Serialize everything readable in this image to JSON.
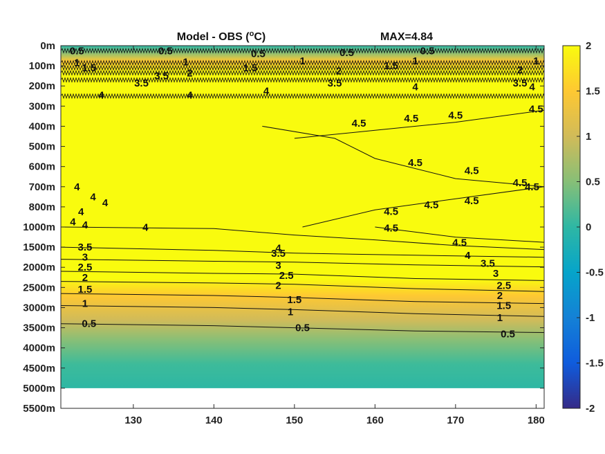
{
  "chart_data": {
    "type": "heatmap",
    "title": "Model - OBS (°C)",
    "title_parts": {
      "main": "Model - OBS (",
      "sup": "o",
      "unit": "C)"
    },
    "max_text": "MAX=4.84",
    "xlabel": "",
    "ylabel": "",
    "xlim": [
      121,
      181
    ],
    "x_ticks": [
      130,
      140,
      150,
      160,
      170,
      180
    ],
    "y_tick_labels": [
      "0m",
      "100m",
      "200m",
      "300m",
      "400m",
      "500m",
      "600m",
      "700m",
      "800m",
      "1000m",
      "1500m",
      "2000m",
      "2500m",
      "3000m",
      "3500m",
      "4000m",
      "4500m",
      "5000m",
      "5500m"
    ],
    "y_tick_values": [
      0,
      100,
      200,
      300,
      400,
      500,
      600,
      700,
      800,
      1000,
      1500,
      2000,
      2500,
      3000,
      3500,
      4000,
      4500,
      5000,
      5500
    ],
    "colorbar": {
      "clim": [
        -2,
        2
      ],
      "ticks": [
        2,
        1.5,
        1,
        0.5,
        0,
        -0.5,
        -1,
        -1.5,
        -2
      ],
      "tick_labels": [
        "2",
        "1.5",
        "1",
        "0.5",
        "0",
        "-0.5",
        "-1",
        "-1.5",
        "-2"
      ],
      "colormap": "parula"
    },
    "colormap_colors": [
      "#352a87",
      "#0f5cdd",
      "#1481d6",
      "#06a4ca",
      "#2eb7a4",
      "#87bf77",
      "#d1bb59",
      "#fec832",
      "#f9fb0e"
    ],
    "ocean_bottom_depth": 5000,
    "contour_levels": [
      "0.5",
      "1",
      "1.5",
      "2",
      "2.5",
      "3",
      "3.5",
      "4",
      "4.5"
    ],
    "contours": [
      {
        "level": 4,
        "label": "4",
        "points": [
          [
            121,
            1000
          ],
          [
            140,
            1040
          ],
          [
            150,
            1200
          ],
          [
            160,
            1320
          ],
          [
            170,
            1460
          ],
          [
            181,
            1560
          ]
        ]
      },
      {
        "level": 3.5,
        "label": "3.5",
        "points": [
          [
            121,
            1500
          ],
          [
            140,
            1580
          ],
          [
            150,
            1650
          ],
          [
            165,
            1700
          ],
          [
            181,
            1750
          ]
        ]
      },
      {
        "level": 3,
        "label": "3",
        "points": [
          [
            121,
            1800
          ],
          [
            140,
            1850
          ],
          [
            150,
            1870
          ],
          [
            165,
            1940
          ],
          [
            181,
            1990
          ]
        ]
      },
      {
        "level": 2.5,
        "label": "2.5",
        "points": [
          [
            121,
            2100
          ],
          [
            140,
            2150
          ],
          [
            150,
            2170
          ],
          [
            165,
            2280
          ],
          [
            181,
            2330
          ]
        ]
      },
      {
        "level": 2,
        "label": "2",
        "points": [
          [
            121,
            2350
          ],
          [
            140,
            2390
          ],
          [
            150,
            2420
          ],
          [
            165,
            2530
          ],
          [
            181,
            2600
          ]
        ]
      },
      {
        "level": 1.5,
        "label": "1.5",
        "points": [
          [
            121,
            2650
          ],
          [
            140,
            2700
          ],
          [
            150,
            2750
          ],
          [
            165,
            2850
          ],
          [
            181,
            2900
          ]
        ]
      },
      {
        "level": 1,
        "label": "1",
        "points": [
          [
            121,
            2950
          ],
          [
            140,
            3000
          ],
          [
            150,
            3050
          ],
          [
            165,
            3150
          ],
          [
            181,
            3220
          ]
        ]
      },
      {
        "level": 0.5,
        "label": "0.5",
        "points": [
          [
            121,
            3400
          ],
          [
            140,
            3450
          ],
          [
            150,
            3500
          ],
          [
            165,
            3580
          ],
          [
            181,
            3620
          ]
        ]
      },
      {
        "level": 4.5,
        "label": "4.5",
        "points": [
          [
            146,
            400
          ],
          [
            155,
            460
          ],
          [
            160,
            560
          ],
          [
            170,
            660
          ],
          [
            181,
            700
          ]
        ]
      },
      {
        "level": 4.5,
        "label": "4.5",
        "points": [
          [
            151,
            1000
          ],
          [
            160,
            830
          ],
          [
            170,
            760
          ],
          [
            181,
            700
          ]
        ]
      },
      {
        "level": 4.5,
        "label": "4.5",
        "points": [
          [
            150,
            460
          ],
          [
            160,
            420
          ],
          [
            170,
            380
          ],
          [
            181,
            320
          ]
        ]
      },
      {
        "level": 4.5,
        "label": "4.5",
        "points": [
          [
            160,
            1000
          ],
          [
            170,
            1250
          ],
          [
            181,
            1380
          ]
        ]
      }
    ],
    "surface_contours": [
      {
        "level": 0.5,
        "label": "0.5",
        "depth": 25
      },
      {
        "level": 1,
        "label": "1",
        "depth": 85
      },
      {
        "level": 1.5,
        "label": "1.5",
        "depth": 110
      },
      {
        "level": 2,
        "label": "2",
        "depth": 135
      },
      {
        "level": 3.5,
        "label": "3.5",
        "depth": 170
      },
      {
        "level": 4,
        "label": "4",
        "depth": 250
      }
    ],
    "contour_labels": [
      {
        "text": "0.5",
        "x": 123.0,
        "y": 25
      },
      {
        "text": "0.5",
        "x": 134.0,
        "y": 25
      },
      {
        "text": "0.5",
        "x": 145.5,
        "y": 40
      },
      {
        "text": "0.5",
        "x": 156.5,
        "y": 35
      },
      {
        "text": "0.5",
        "x": 166.5,
        "y": 25
      },
      {
        "text": "1",
        "x": 123.0,
        "y": 85
      },
      {
        "text": "1",
        "x": 136.5,
        "y": 80
      },
      {
        "text": "1",
        "x": 151.0,
        "y": 75
      },
      {
        "text": "1",
        "x": 165.0,
        "y": 75
      },
      {
        "text": "1",
        "x": 180.0,
        "y": 75
      },
      {
        "text": "1.5",
        "x": 124.5,
        "y": 110
      },
      {
        "text": "1.5",
        "x": 144.5,
        "y": 110
      },
      {
        "text": "1.5",
        "x": 162.0,
        "y": 100
      },
      {
        "text": "2",
        "x": 137.0,
        "y": 135
      },
      {
        "text": "2",
        "x": 155.5,
        "y": 125
      },
      {
        "text": "2",
        "x": 178.0,
        "y": 120
      },
      {
        "text": "3.5",
        "x": 131.0,
        "y": 185
      },
      {
        "text": "3.5",
        "x": 133.5,
        "y": 150
      },
      {
        "text": "3.5",
        "x": 155.0,
        "y": 185
      },
      {
        "text": "3.5",
        "x": 178.0,
        "y": 185
      },
      {
        "text": "4",
        "x": 126.0,
        "y": 245
      },
      {
        "text": "4",
        "x": 137.0,
        "y": 245
      },
      {
        "text": "4",
        "x": 146.5,
        "y": 225
      },
      {
        "text": "4",
        "x": 165.0,
        "y": 205
      },
      {
        "text": "4",
        "x": 179.5,
        "y": 205
      },
      {
        "text": "4.5",
        "x": 158.0,
        "y": 385
      },
      {
        "text": "4.5",
        "x": 164.5,
        "y": 360
      },
      {
        "text": "4.5",
        "x": 170.0,
        "y": 345
      },
      {
        "text": "4.5",
        "x": 180.0,
        "y": 315
      },
      {
        "text": "4.5",
        "x": 165.0,
        "y": 580
      },
      {
        "text": "4.5",
        "x": 172.0,
        "y": 620
      },
      {
        "text": "4.5",
        "x": 178.0,
        "y": 680
      },
      {
        "text": "4.5",
        "x": 162.0,
        "y": 845
      },
      {
        "text": "4.5",
        "x": 167.0,
        "y": 790
      },
      {
        "text": "4.5",
        "x": 172.0,
        "y": 770
      },
      {
        "text": "4.5",
        "x": 179.5,
        "y": 700
      },
      {
        "text": "4.5",
        "x": 162.0,
        "y": 1030
      },
      {
        "text": "4.5",
        "x": 170.5,
        "y": 1390
      },
      {
        "text": "4",
        "x": 131.5,
        "y": 1010
      },
      {
        "text": "4",
        "x": 148.0,
        "y": 1520
      },
      {
        "text": "4",
        "x": 171.5,
        "y": 1700
      },
      {
        "text": "3.5",
        "x": 124.0,
        "y": 1500
      },
      {
        "text": "3.5",
        "x": 148.0,
        "y": 1650
      },
      {
        "text": "3.5",
        "x": 174.0,
        "y": 1900
      },
      {
        "text": "3",
        "x": 124.0,
        "y": 1750
      },
      {
        "text": "3",
        "x": 148.0,
        "y": 1950
      },
      {
        "text": "3",
        "x": 175.0,
        "y": 2150
      },
      {
        "text": "2.5",
        "x": 124.0,
        "y": 2000
      },
      {
        "text": "2.5",
        "x": 149.0,
        "y": 2200
      },
      {
        "text": "2.5",
        "x": 176.0,
        "y": 2450
      },
      {
        "text": "2",
        "x": 124.0,
        "y": 2250
      },
      {
        "text": "2",
        "x": 148.0,
        "y": 2450
      },
      {
        "text": "2",
        "x": 175.5,
        "y": 2700
      },
      {
        "text": "1.5",
        "x": 124.0,
        "y": 2550
      },
      {
        "text": "1.5",
        "x": 150.0,
        "y": 2800
      },
      {
        "text": "1.5",
        "x": 176.0,
        "y": 2950
      },
      {
        "text": "1",
        "x": 124.0,
        "y": 2900
      },
      {
        "text": "1",
        "x": 149.5,
        "y": 3100
      },
      {
        "text": "1",
        "x": 175.5,
        "y": 3250
      },
      {
        "text": "0.5",
        "x": 124.5,
        "y": 3400
      },
      {
        "text": "0.5",
        "x": 151.0,
        "y": 3500
      },
      {
        "text": "0.5",
        "x": 176.5,
        "y": 3650
      },
      {
        "text": "4",
        "x": 123.0,
        "y": 700
      },
      {
        "text": "4",
        "x": 125.0,
        "y": 750
      },
      {
        "text": "4",
        "x": 126.5,
        "y": 780
      },
      {
        "text": "4",
        "x": 123.5,
        "y": 850
      },
      {
        "text": "4",
        "x": 122.5,
        "y": 950
      },
      {
        "text": "4",
        "x": 124.0,
        "y": 980
      }
    ]
  }
}
